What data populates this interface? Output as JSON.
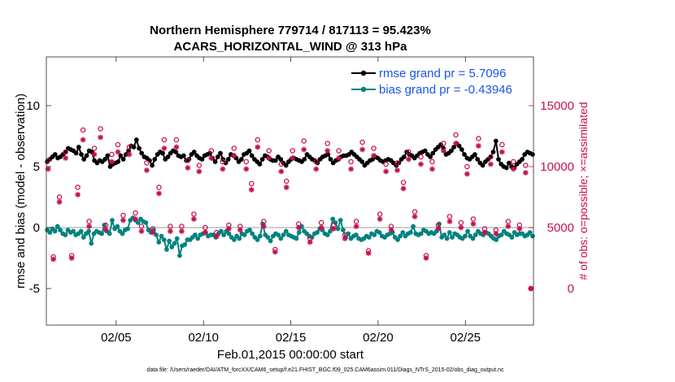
{
  "chart_data": {
    "type": "line",
    "title_line1": "Northern Hemisphere 779714 / 817113 = 95.423%",
    "title_line2": "ACARS_HORIZONTAL_WIND @ 313 hPa",
    "xlabel": "Feb.01,2015 00:00:00 start",
    "ylabel": "rmse and bias (model - observation)",
    "y2label": "# of obs: o=possible; ×=assimilated",
    "footnote": "data file: /Users/raeder/DAI/ATM_forcXX/CAM6_setup/f.e21.FHIST_BGC.f09_025.CAM6assim.011/Diags_NTrS_2015-02/obs_diag_output.nc",
    "x_range": [
      1.0,
      28.9
    ],
    "xticks": [
      5,
      10,
      15,
      20,
      25
    ],
    "xtick_labels": [
      "02/05",
      "02/10",
      "02/15",
      "02/20",
      "02/25"
    ],
    "ylim": [
      -8,
      14
    ],
    "yticks": [
      -5,
      0,
      5,
      10
    ],
    "ytick_labels": [
      "-5",
      "0",
      "5",
      "10"
    ],
    "y2lim": [
      -3000,
      19000
    ],
    "y2ticks": [
      0,
      5000,
      10000,
      15000
    ],
    "y2tick_labels": [
      "0",
      "5000",
      "10000",
      "15000"
    ],
    "zero_line": 0,
    "legend_position": "top-right",
    "series": [
      {
        "name": "rmse grand pr = 5.7096",
        "axis": "left",
        "color": "#000000",
        "values": [
          5.4,
          5.6,
          5.8,
          6.0,
          5.7,
          5.8,
          6.0,
          6.2,
          6.5,
          6.4,
          6.3,
          6.1,
          6.6,
          6.0,
          5.6,
          5.9,
          6.3,
          6.2,
          5.5,
          5.3,
          5.5,
          5.4,
          5.6,
          5.9,
          5.0,
          5.2,
          5.3,
          5.4,
          5.9,
          5.6,
          6.0,
          6.3,
          6.7,
          6.6,
          7.2,
          6.5,
          6.1,
          5.8,
          5.7,
          5.5,
          5.1,
          5.6,
          6.0,
          6.2,
          6.1,
          5.6,
          5.8,
          6.1,
          6.3,
          6.2,
          5.9,
          5.8,
          5.9,
          5.5,
          5.6,
          6.0,
          6.2,
          5.9,
          5.7,
          5.6,
          5.9,
          6.0,
          6.1,
          5.7,
          5.4,
          5.8,
          6.1,
          5.6,
          5.3,
          5.6,
          6.0,
          5.9,
          5.7,
          5.4,
          5.6,
          6.0,
          6.1,
          6.3,
          5.9,
          5.6,
          5.4,
          5.2,
          5.6,
          5.9,
          5.8,
          5.6,
          5.5,
          5.5,
          5.8,
          5.6,
          5.3,
          5.1,
          5.4,
          5.6,
          5.7,
          5.6,
          5.5,
          5.4,
          5.6,
          6.0,
          5.8,
          5.6,
          5.5,
          5.3,
          5.6,
          5.8,
          5.9,
          6.0,
          5.6,
          5.3,
          5.5,
          5.6,
          5.8,
          5.9,
          5.9,
          6.0,
          6.2,
          6.0,
          5.8,
          5.6,
          5.4,
          5.1,
          5.3,
          5.5,
          5.6,
          5.8,
          5.7,
          5.5,
          5.4,
          5.5,
          5.6,
          5.5,
          5.3,
          5.1,
          5.3,
          5.6,
          5.8,
          6.2,
          6.0,
          5.9,
          5.7,
          5.9,
          6.1,
          6.2,
          6.3,
          6.0,
          5.8,
          6.1,
          6.4,
          6.6,
          6.8,
          6.5,
          6.0,
          6.1,
          6.3,
          6.6,
          6.9,
          6.7,
          6.4,
          6.0,
          5.7,
          5.6,
          5.8,
          6.0,
          5.6,
          5.3,
          5.1,
          5.4,
          5.6,
          5.8,
          6.2,
          7.1,
          5.6,
          5.2,
          5.0,
          4.9,
          5.3,
          5.0,
          4.9,
          5.2,
          5.4,
          5.6,
          6.0,
          6.2,
          6.1,
          6.0
        ]
      },
      {
        "name": "bias grand pr = -0.43946",
        "axis": "left",
        "color": "#00827f",
        "values": [
          -0.2,
          -0.4,
          -0.1,
          -0.3,
          0.1,
          -0.2,
          -0.5,
          -0.6,
          -0.2,
          -0.4,
          -0.3,
          -0.6,
          -0.5,
          -0.3,
          -0.8,
          -0.5,
          -0.3,
          -1.3,
          -0.5,
          -0.3,
          -0.4,
          -0.5,
          0.2,
          -0.3,
          -0.5,
          0.6,
          -0.1,
          0.1,
          -0.3,
          -0.5,
          -0.2,
          -0.1,
          0.6,
          0.8,
          0.6,
          0.4,
          0.7,
          0.5,
          0.4,
          -0.2,
          -0.4,
          -0.2,
          -0.6,
          -1.2,
          -0.7,
          -1.0,
          -1.8,
          -1.1,
          -1.6,
          -1.3,
          -0.9,
          -2.3,
          -1.5,
          -1.4,
          -1.0,
          -1.0,
          -0.8,
          -0.6,
          -0.9,
          -0.6,
          -0.5,
          -0.4,
          -0.7,
          -0.6,
          -0.6,
          -0.8,
          -0.5,
          -0.3,
          -0.6,
          -0.3,
          -0.5,
          -0.8,
          -1.0,
          -0.7,
          -0.9,
          -0.5,
          -0.6,
          -0.3,
          -0.2,
          -0.5,
          -0.8,
          -1.0,
          -0.7,
          0.3,
          -0.6,
          -0.8,
          -1.1,
          -0.7,
          -0.5,
          -0.6,
          -0.9,
          -0.6,
          -0.3,
          -0.6,
          -0.7,
          -0.8,
          -0.9,
          -0.4,
          0.1,
          -0.3,
          -0.5,
          -0.7,
          -0.8,
          -0.5,
          -0.4,
          -0.1,
          -0.2,
          -0.5,
          -0.6,
          -0.3,
          0.7,
          0.4,
          -0.1,
          0.6,
          -0.2,
          -0.8,
          -0.5,
          -0.9,
          -0.7,
          -0.6,
          -0.9,
          -1.0,
          -0.9,
          -0.7,
          -0.8,
          -0.5,
          -0.6,
          -0.3,
          -0.4,
          -0.7,
          -0.8,
          -0.6,
          -0.5,
          -0.4,
          -0.8,
          -1.0,
          -0.7,
          -0.4,
          -0.7,
          -0.5,
          -0.4,
          0.1,
          -0.5,
          -0.6,
          -0.5,
          -0.2,
          -0.3,
          -0.5,
          -0.4,
          -0.5,
          -0.3,
          0.3,
          -0.8,
          -0.6,
          -0.9,
          -0.4,
          -0.8,
          -0.5,
          -0.6,
          -0.8,
          -0.9,
          -0.7,
          -0.3,
          -0.7,
          -0.9,
          -0.6,
          -0.3,
          -0.5,
          -0.6,
          -0.4,
          -0.5,
          -0.7,
          -0.9,
          -1.0,
          -0.7,
          -0.6,
          -0.3,
          -0.5,
          -0.6,
          -0.8,
          -0.4,
          -0.6,
          -0.5,
          -0.5,
          -0.7,
          -0.6,
          -0.4,
          -0.7
        ]
      },
      {
        "name": "# of obs possible",
        "axis": "right",
        "marker": "circle",
        "color": "#c8104e",
        "x": [
          1.1,
          1.4,
          1.75,
          2.1,
          2.45,
          2.8,
          3.1,
          3.45,
          3.75,
          4.1,
          4.4,
          4.75,
          5.1,
          5.4,
          5.75,
          6.1,
          6.45,
          6.75,
          7.1,
          7.45,
          7.75,
          8.1,
          8.45,
          8.75,
          9.1,
          9.45,
          9.75,
          10.1,
          10.45,
          10.75,
          11.1,
          11.45,
          11.75,
          12.1,
          12.45,
          12.75,
          13.1,
          13.45,
          13.75,
          14.1,
          14.45,
          14.75,
          15.1,
          15.45,
          15.75,
          16.1,
          16.45,
          16.75,
          17.1,
          17.45,
          17.75,
          18.1,
          18.45,
          18.75,
          19.1,
          19.45,
          19.75,
          20.1,
          20.45,
          20.75,
          21.1,
          21.45,
          21.75,
          22.1,
          22.45,
          22.75,
          23.1,
          23.45,
          23.75,
          24.1,
          24.45,
          24.75,
          25.1,
          25.45,
          25.75,
          26.1,
          26.45,
          26.75,
          27.1,
          27.45,
          27.75,
          28.1,
          28.45,
          28.75
        ],
        "values": [
          10500,
          2600,
          7500,
          11200,
          2700,
          8300,
          13000,
          5500,
          11500,
          13100,
          5200,
          11000,
          11800,
          6000,
          11600,
          6200,
          5100,
          10300,
          4900,
          8300,
          12200,
          5100,
          12200,
          5100,
          10500,
          6100,
          10100,
          5000,
          11300,
          4600,
          10400,
          5200,
          11500,
          5100,
          10400,
          8600,
          12200,
          5500,
          11300,
          3200,
          10200,
          8800,
          11300,
          5300,
          12100,
          4100,
          10400,
          5400,
          11900,
          5200,
          11300,
          4400,
          10400,
          5500,
          12000,
          3100,
          11500,
          6100,
          10200,
          5100,
          10300,
          8700,
          11200,
          6300,
          10800,
          2700,
          10400,
          5200,
          11900,
          5900,
          12600,
          5400,
          10000,
          5700,
          12300,
          4900,
          10800,
          4800,
          11800,
          5500,
          10400,
          5200,
          10100,
          0
        ]
      },
      {
        "name": "# of obs assimilated",
        "axis": "right",
        "marker": "asterisk",
        "color": "#c8104e",
        "x": [
          1.1,
          1.4,
          1.75,
          2.1,
          2.45,
          2.8,
          3.1,
          3.45,
          3.75,
          4.1,
          4.4,
          4.75,
          5.1,
          5.4,
          5.75,
          6.1,
          6.45,
          6.75,
          7.1,
          7.45,
          7.75,
          8.1,
          8.45,
          8.75,
          9.1,
          9.45,
          9.75,
          10.1,
          10.45,
          10.75,
          11.1,
          11.45,
          11.75,
          12.1,
          12.45,
          12.75,
          13.1,
          13.45,
          13.75,
          14.1,
          14.45,
          14.75,
          15.1,
          15.45,
          15.75,
          16.1,
          16.45,
          16.75,
          17.1,
          17.45,
          17.75,
          18.1,
          18.45,
          18.75,
          19.1,
          19.45,
          19.75,
          20.1,
          20.45,
          20.75,
          21.1,
          21.45,
          21.75,
          22.1,
          22.45,
          22.75,
          23.1,
          23.45,
          23.75,
          24.1,
          24.45,
          24.75,
          25.1,
          25.45,
          25.75,
          26.1,
          26.45,
          26.75,
          27.1,
          27.45,
          27.75,
          28.1,
          28.45,
          28.75
        ],
        "values": [
          9800,
          2400,
          7100,
          10700,
          2500,
          7700,
          12200,
          5100,
          11000,
          12400,
          4800,
          10400,
          11200,
          5600,
          11000,
          5700,
          4700,
          9700,
          4600,
          7800,
          11500,
          4700,
          11600,
          4700,
          9900,
          5700,
          9600,
          4600,
          10700,
          4300,
          9800,
          4900,
          10900,
          4800,
          9800,
          8100,
          11600,
          5100,
          10700,
          3000,
          9600,
          8300,
          10700,
          5000,
          11400,
          3800,
          9800,
          5000,
          11300,
          4900,
          10700,
          4100,
          9800,
          5100,
          11400,
          2900,
          10900,
          5700,
          9600,
          4800,
          9700,
          8200,
          10600,
          5900,
          10200,
          2500,
          9800,
          4900,
          11300,
          5500,
          11900,
          5000,
          9400,
          5300,
          11700,
          4600,
          10200,
          4500,
          11200,
          5100,
          9800,
          4900,
          9500,
          0
        ]
      }
    ]
  }
}
